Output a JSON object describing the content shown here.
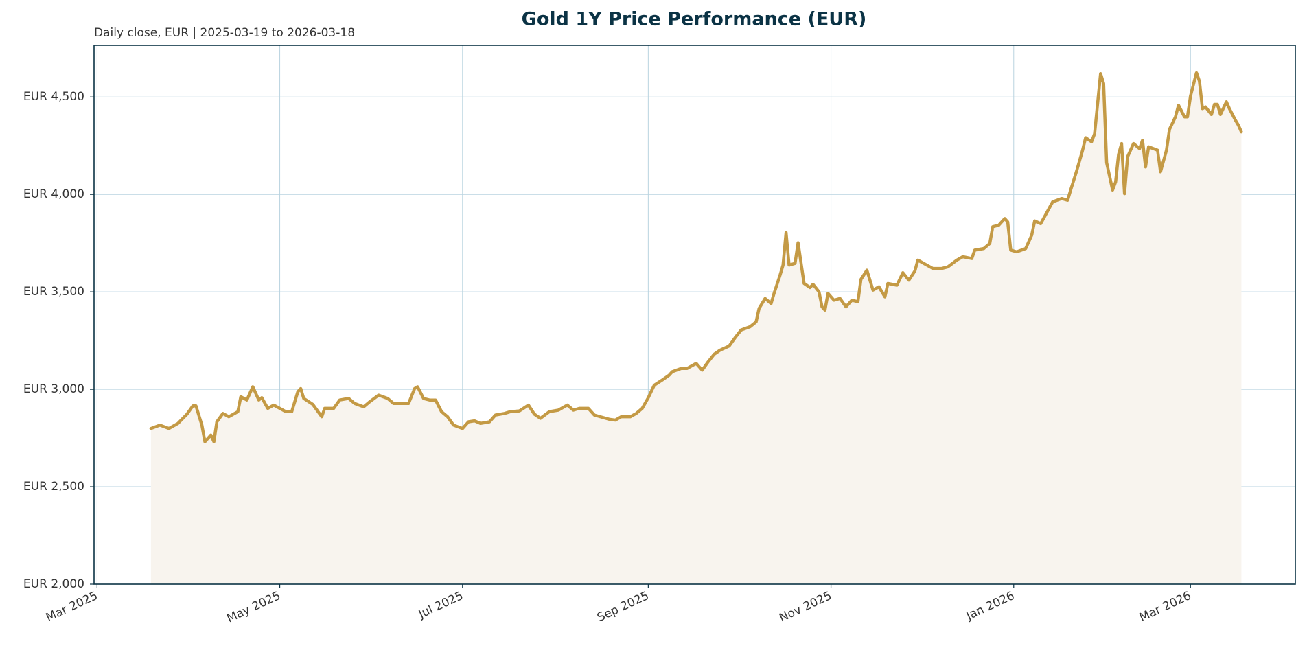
{
  "chart_data": {
    "type": "line",
    "title": "Gold 1Y Price Performance (EUR)",
    "subtitle": "Daily close, EUR | 2025-03-19 to 2026-03-18",
    "x": [
      "2025-03-19",
      "2025-03-22",
      "2025-03-25",
      "2025-03-28",
      "2025-03-31",
      "2025-04-02",
      "2025-04-03",
      "2025-04-05",
      "2025-04-06",
      "2025-04-08",
      "2025-04-09",
      "2025-04-10",
      "2025-04-12",
      "2025-04-14",
      "2025-04-17",
      "2025-04-18",
      "2025-04-20",
      "2025-04-22",
      "2025-04-24",
      "2025-04-25",
      "2025-04-27",
      "2025-04-29",
      "2025-05-03",
      "2025-05-05",
      "2025-05-07",
      "2025-05-08",
      "2025-05-09",
      "2025-05-12",
      "2025-05-15",
      "2025-05-16",
      "2025-05-19",
      "2025-05-21",
      "2025-05-24",
      "2025-05-26",
      "2025-05-29",
      "2025-05-31",
      "2025-06-03",
      "2025-06-06",
      "2025-06-08",
      "2025-06-11",
      "2025-06-13",
      "2025-06-15",
      "2025-06-16",
      "2025-06-18",
      "2025-06-20",
      "2025-06-22",
      "2025-06-24",
      "2025-06-26",
      "2025-06-28",
      "2025-07-01",
      "2025-07-03",
      "2025-07-05",
      "2025-07-07",
      "2025-07-10",
      "2025-07-12",
      "2025-07-15",
      "2025-07-17",
      "2025-07-20",
      "2025-07-23",
      "2025-07-25",
      "2025-07-27",
      "2025-07-30",
      "2025-08-02",
      "2025-08-05",
      "2025-08-07",
      "2025-08-09",
      "2025-08-12",
      "2025-08-14",
      "2025-08-16",
      "2025-08-19",
      "2025-08-21",
      "2025-08-23",
      "2025-08-26",
      "2025-08-28",
      "2025-08-30",
      "2025-09-01",
      "2025-09-03",
      "2025-09-06",
      "2025-09-08",
      "2025-09-09",
      "2025-09-12",
      "2025-09-14",
      "2025-09-17",
      "2025-09-19",
      "2025-09-21",
      "2025-09-23",
      "2025-09-25",
      "2025-09-28",
      "2025-09-30",
      "2025-10-02",
      "2025-10-05",
      "2025-10-07",
      "2025-10-08",
      "2025-10-10",
      "2025-10-12",
      "2025-10-13",
      "2025-10-15",
      "2025-10-16",
      "2025-10-17",
      "2025-10-18",
      "2025-10-20",
      "2025-10-21",
      "2025-10-23",
      "2025-10-25",
      "2025-10-26",
      "2025-10-28",
      "2025-10-29",
      "2025-10-30",
      "2025-10-31",
      "2025-11-02",
      "2025-11-04",
      "2025-11-06",
      "2025-11-08",
      "2025-11-10",
      "2025-11-11",
      "2025-11-13",
      "2025-11-15",
      "2025-11-17",
      "2025-11-19",
      "2025-11-20",
      "2025-11-23",
      "2025-11-25",
      "2025-11-27",
      "2025-11-29",
      "2025-11-30",
      "2025-12-03",
      "2025-12-05",
      "2025-12-08",
      "2025-12-10",
      "2025-12-13",
      "2025-12-15",
      "2025-12-18",
      "2025-12-19",
      "2025-12-22",
      "2025-12-24",
      "2025-12-25",
      "2025-12-27",
      "2025-12-29",
      "2025-12-30",
      "2025-12-31",
      "2026-01-02",
      "2026-01-05",
      "2026-01-07",
      "2026-01-08",
      "2026-01-10",
      "2026-01-12",
      "2026-01-14",
      "2026-01-17",
      "2026-01-19",
      "2026-01-20",
      "2026-01-22",
      "2026-01-24",
      "2026-01-25",
      "2026-01-27",
      "2026-01-28",
      "2026-01-30",
      "2026-01-31",
      "2026-02-01",
      "2026-02-03",
      "2026-02-04",
      "2026-02-05",
      "2026-02-06",
      "2026-02-07",
      "2026-02-08",
      "2026-02-10",
      "2026-02-12",
      "2026-02-13",
      "2026-02-14",
      "2026-02-15",
      "2026-02-18",
      "2026-02-19",
      "2026-02-21",
      "2026-02-22",
      "2026-02-24",
      "2026-02-25",
      "2026-02-27",
      "2026-02-28",
      "2026-03-01",
      "2026-03-03",
      "2026-03-04",
      "2026-03-05",
      "2026-03-06",
      "2026-03-08",
      "2026-03-09",
      "2026-03-10",
      "2026-03-11",
      "2026-03-13",
      "2026-03-14",
      "2026-03-16",
      "2026-03-17",
      "2026-03-18"
    ],
    "series": [
      {
        "name": "Gold",
        "color": "#c49a45",
        "fill": "#f8f4ee",
        "values": [
          2799,
          2816,
          2799,
          2825,
          2872,
          2915,
          2915,
          2816,
          2731,
          2765,
          2731,
          2833,
          2876,
          2859,
          2885,
          2962,
          2945,
          3013,
          2945,
          2957,
          2902,
          2919,
          2885,
          2885,
          2987,
          3004,
          2953,
          2923,
          2859,
          2902,
          2902,
          2945,
          2953,
          2927,
          2910,
          2936,
          2970,
          2953,
          2927,
          2927,
          2927,
          3004,
          3013,
          2953,
          2945,
          2945,
          2885,
          2859,
          2816,
          2799,
          2833,
          2838,
          2825,
          2833,
          2868,
          2876,
          2885,
          2889,
          2919,
          2872,
          2851,
          2885,
          2893,
          2919,
          2893,
          2902,
          2902,
          2868,
          2859,
          2846,
          2842,
          2859,
          2859,
          2876,
          2902,
          2957,
          3021,
          3051,
          3073,
          3090,
          3107,
          3107,
          3133,
          3098,
          3141,
          3180,
          3201,
          3222,
          3265,
          3304,
          3321,
          3346,
          3415,
          3466,
          3440,
          3492,
          3586,
          3637,
          3804,
          3637,
          3646,
          3752,
          3543,
          3522,
          3539,
          3500,
          3423,
          3406,
          3492,
          3457,
          3466,
          3423,
          3457,
          3449,
          3564,
          3611,
          3509,
          3526,
          3474,
          3543,
          3534,
          3598,
          3560,
          3607,
          3663,
          3637,
          3620,
          3620,
          3628,
          3663,
          3680,
          3671,
          3714,
          3722,
          3748,
          3834,
          3842,
          3876,
          3859,
          3714,
          3705,
          3722,
          3791,
          3864,
          3850,
          3906,
          3962,
          3979,
          3970,
          4022,
          4120,
          4227,
          4291,
          4270,
          4312,
          4620,
          4569,
          4163,
          4022,
          4064,
          4205,
          4261,
          4004,
          4193,
          4261,
          4235,
          4278,
          4141,
          4244,
          4227,
          4116,
          4227,
          4334,
          4398,
          4458,
          4398,
          4398,
          4505,
          4624,
          4581,
          4440,
          4449,
          4410,
          4462,
          4462,
          4410,
          4475,
          4440,
          4381,
          4355,
          4321
        ]
      }
    ],
    "xlim": [
      "2025-02-28",
      "2026-04-05"
    ],
    "xticks": [
      {
        "value": "2025-03-01",
        "label": "Mar 2025"
      },
      {
        "value": "2025-05-01",
        "label": "May 2025"
      },
      {
        "value": "2025-07-01",
        "label": "Jul 2025"
      },
      {
        "value": "2025-09-01",
        "label": "Sep 2025"
      },
      {
        "value": "2025-11-01",
        "label": "Nov 2025"
      },
      {
        "value": "2026-01-01",
        "label": "Jan 2026"
      },
      {
        "value": "2026-03-01",
        "label": "Mar 2026"
      }
    ],
    "ylim": [
      2000,
      4765
    ],
    "yticks": [
      {
        "value": 2000,
        "label": "EUR 2,000"
      },
      {
        "value": 2500,
        "label": "EUR 2,500"
      },
      {
        "value": 3000,
        "label": "EUR 3,000"
      },
      {
        "value": 3500,
        "label": "EUR 3,500"
      },
      {
        "value": 4000,
        "label": "EUR 4,000"
      },
      {
        "value": 4500,
        "label": "EUR 4,500"
      }
    ],
    "grid": true
  }
}
